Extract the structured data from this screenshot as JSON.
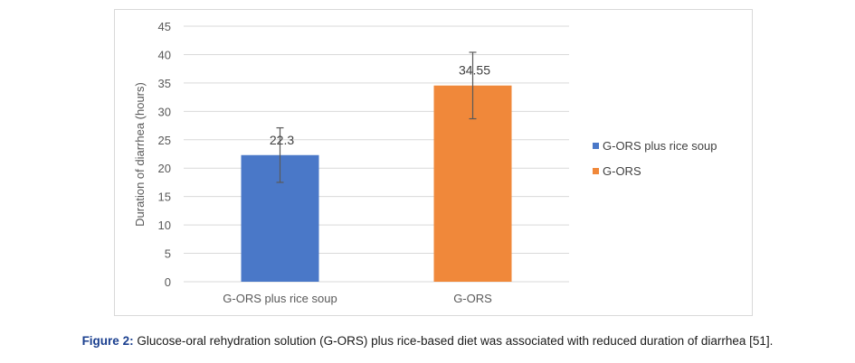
{
  "chart_data": {
    "type": "bar",
    "categories": [
      "G-ORS plus rice soup",
      "G-ORS"
    ],
    "series": [
      {
        "name": "G-ORS plus rice soup",
        "color": "#4a78c8",
        "category": "G-ORS plus rice soup",
        "value": 22.3,
        "value_label": "22.3",
        "error_low": 17.5,
        "error_high": 27.1
      },
      {
        "name": "G-ORS",
        "color": "#f0883a",
        "category": "G-ORS",
        "value": 34.55,
        "value_label": "34.55",
        "error_low": 28.7,
        "error_high": 40.4
      }
    ],
    "title": "",
    "xlabel": "",
    "ylabel": "Duration of diarrhea (hours)",
    "ylim": [
      0,
      45
    ],
    "yticks": [
      0,
      5,
      10,
      15,
      20,
      25,
      30,
      35,
      40,
      45
    ],
    "grid": true,
    "legend_position": "right"
  },
  "caption": {
    "label": "Figure 2:",
    "text": " Glucose-oral rehydration solution (G-ORS) plus rice-based diet was associated with reduced duration of diarrhea [51]."
  },
  "colors": {
    "gridline": "#d9d9d9",
    "axis_text": "#595959",
    "error_bar": "#595959"
  }
}
